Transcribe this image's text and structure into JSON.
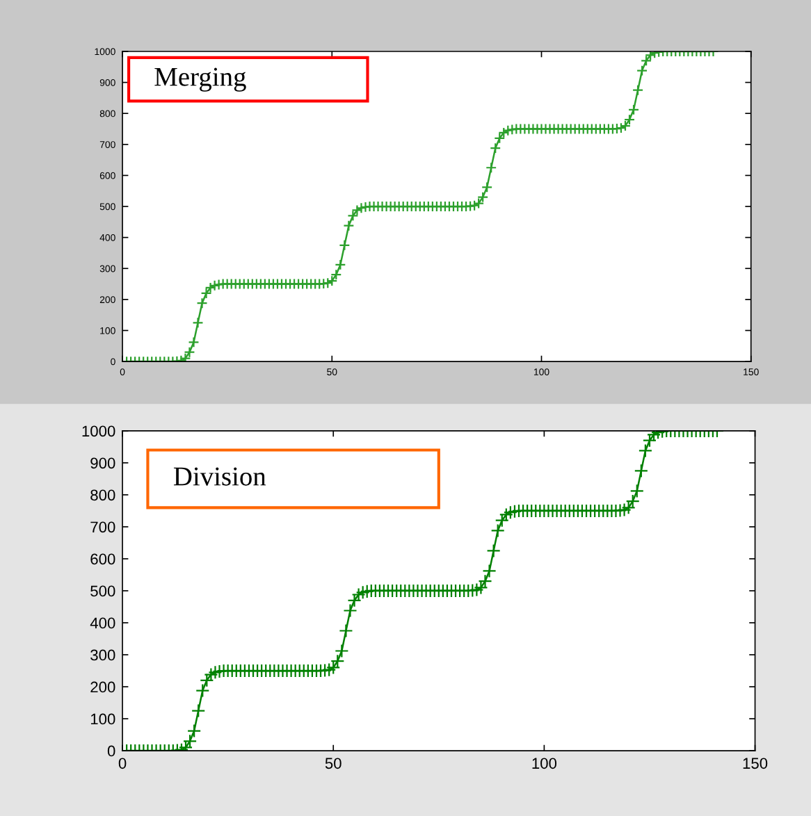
{
  "chart_data": [
    {
      "type": "line",
      "annotations": [
        "Merging"
      ],
      "marker": "cross",
      "line_style": "solid",
      "grid": false,
      "x": [
        1,
        2,
        3,
        4,
        5,
        6,
        7,
        8,
        9,
        10,
        11,
        12,
        13,
        14,
        15,
        16,
        17,
        18,
        19,
        20,
        21,
        22,
        23,
        24,
        25,
        26,
        27,
        28,
        29,
        30,
        31,
        32,
        33,
        34,
        35,
        36,
        37,
        38,
        39,
        40,
        41,
        42,
        43,
        44,
        45,
        46,
        47,
        48,
        49,
        50,
        51,
        52,
        53,
        54,
        55,
        56,
        57,
        58,
        59,
        60,
        61,
        62,
        63,
        64,
        65,
        66,
        67,
        68,
        69,
        70,
        71,
        72,
        73,
        74,
        75,
        76,
        77,
        78,
        79,
        80,
        81,
        82,
        83,
        84,
        85,
        86,
        87,
        88,
        89,
        90,
        91,
        92,
        93,
        94,
        95,
        96,
        97,
        98,
        99,
        100,
        101,
        102,
        103,
        104,
        105,
        106,
        107,
        108,
        109,
        110,
        111,
        112,
        113,
        114,
        115,
        116,
        117,
        118,
        119,
        120,
        121,
        122,
        123,
        124,
        125,
        126,
        127,
        128,
        129,
        130,
        131,
        132,
        133,
        134,
        135,
        136,
        137,
        138,
        139,
        140,
        141
      ],
      "series": [
        {
          "color": "#2ca02c",
          "values": [
            0,
            0,
            0,
            0,
            0,
            0,
            0,
            0,
            0,
            0,
            0,
            0,
            1,
            3,
            10,
            30,
            62,
            125,
            188,
            220,
            238,
            245,
            248,
            250,
            250,
            250,
            250,
            250,
            250,
            250,
            250,
            250,
            250,
            250,
            250,
            250,
            250,
            250,
            250,
            250,
            250,
            250,
            250,
            250,
            250,
            250,
            250,
            251,
            253,
            260,
            280,
            312,
            375,
            438,
            470,
            488,
            495,
            498,
            500,
            500,
            500,
            500,
            500,
            500,
            500,
            500,
            500,
            500,
            500,
            500,
            500,
            500,
            500,
            500,
            500,
            500,
            500,
            500,
            500,
            500,
            500,
            500,
            501,
            503,
            510,
            530,
            562,
            625,
            688,
            720,
            738,
            745,
            748,
            750,
            750,
            750,
            750,
            750,
            750,
            750,
            750,
            750,
            750,
            750,
            750,
            750,
            750,
            750,
            750,
            750,
            750,
            750,
            750,
            750,
            750,
            750,
            750,
            751,
            753,
            760,
            780,
            812,
            875,
            938,
            970,
            988,
            995,
            998,
            1000,
            1000,
            1000,
            1000,
            1000,
            1000,
            1000,
            1000,
            1000,
            1000,
            1000,
            1000,
            1000
          ]
        }
      ],
      "xlim": [
        0,
        150
      ],
      "xticks": [
        0,
        50,
        100,
        150
      ],
      "ylim": [
        0,
        1000
      ],
      "yticks": [
        0,
        100,
        200,
        300,
        400,
        500,
        600,
        700,
        800,
        900,
        1000
      ]
    },
    {
      "type": "line",
      "annotations": [
        "Division"
      ],
      "marker": "cross",
      "line_style": "solid",
      "grid": false,
      "x": [
        1,
        2,
        3,
        4,
        5,
        6,
        7,
        8,
        9,
        10,
        11,
        12,
        13,
        14,
        15,
        16,
        17,
        18,
        19,
        20,
        21,
        22,
        23,
        24,
        25,
        26,
        27,
        28,
        29,
        30,
        31,
        32,
        33,
        34,
        35,
        36,
        37,
        38,
        39,
        40,
        41,
        42,
        43,
        44,
        45,
        46,
        47,
        48,
        49,
        50,
        51,
        52,
        53,
        54,
        55,
        56,
        57,
        58,
        59,
        60,
        61,
        62,
        63,
        64,
        65,
        66,
        67,
        68,
        69,
        70,
        71,
        72,
        73,
        74,
        75,
        76,
        77,
        78,
        79,
        80,
        81,
        82,
        83,
        84,
        85,
        86,
        87,
        88,
        89,
        90,
        91,
        92,
        93,
        94,
        95,
        96,
        97,
        98,
        99,
        100,
        101,
        102,
        103,
        104,
        105,
        106,
        107,
        108,
        109,
        110,
        111,
        112,
        113,
        114,
        115,
        116,
        117,
        118,
        119,
        120,
        121,
        122,
        123,
        124,
        125,
        126,
        127,
        128,
        129,
        130,
        131,
        132,
        133,
        134,
        135,
        136,
        137,
        138,
        139,
        140,
        141
      ],
      "series": [
        {
          "color": "#008000",
          "values": [
            0,
            0,
            0,
            0,
            0,
            0,
            0,
            0,
            0,
            0,
            0,
            0,
            1,
            3,
            10,
            30,
            62,
            125,
            188,
            220,
            238,
            245,
            248,
            250,
            250,
            250,
            250,
            250,
            250,
            250,
            250,
            250,
            250,
            250,
            250,
            250,
            250,
            250,
            250,
            250,
            250,
            250,
            250,
            250,
            250,
            250,
            250,
            251,
            253,
            260,
            280,
            312,
            375,
            438,
            470,
            488,
            495,
            498,
            500,
            500,
            500,
            500,
            500,
            500,
            500,
            500,
            500,
            500,
            500,
            500,
            500,
            500,
            500,
            500,
            500,
            500,
            500,
            500,
            500,
            500,
            500,
            500,
            501,
            503,
            510,
            530,
            562,
            625,
            688,
            720,
            738,
            745,
            748,
            750,
            750,
            750,
            750,
            750,
            750,
            750,
            750,
            750,
            750,
            750,
            750,
            750,
            750,
            750,
            750,
            750,
            750,
            750,
            750,
            750,
            750,
            750,
            750,
            751,
            753,
            760,
            780,
            812,
            875,
            938,
            970,
            988,
            995,
            998,
            1000,
            1000,
            1000,
            1000,
            1000,
            1000,
            1000,
            1000,
            1000,
            1000,
            1000,
            1000,
            1000
          ]
        }
      ],
      "xlim": [
        0,
        150
      ],
      "xticks": [
        0,
        50,
        100,
        150
      ],
      "ylim": [
        0,
        1000
      ],
      "yticks": [
        0,
        100,
        200,
        300,
        400,
        500,
        600,
        700,
        800,
        900,
        1000
      ]
    }
  ]
}
